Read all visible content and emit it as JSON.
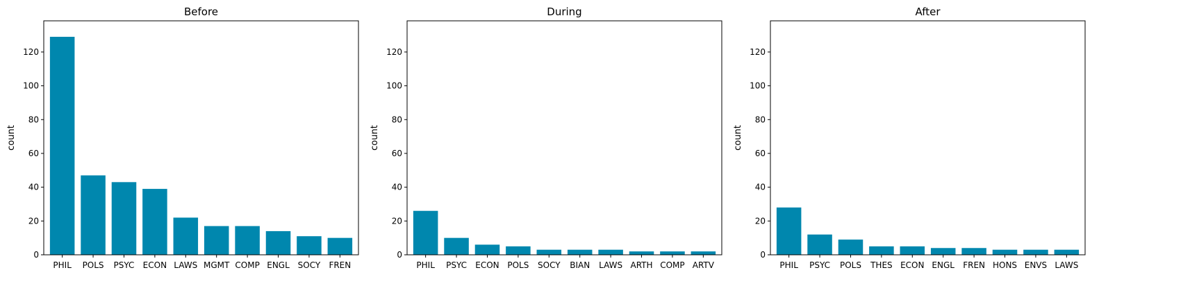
{
  "chart_data": [
    {
      "type": "bar",
      "title": "Before",
      "xlabel": "",
      "ylabel": "count",
      "ylim": [
        0,
        138.45
      ],
      "yticks": [
        0,
        20,
        40,
        60,
        80,
        100,
        120
      ],
      "categories": [
        "PHIL",
        "POLS",
        "PSYC",
        "ECON",
        "LAWS",
        "MGMT",
        "COMP",
        "ENGL",
        "SOCY",
        "FREN"
      ],
      "values": [
        129,
        47,
        43,
        39,
        22,
        17,
        17,
        14,
        11,
        10
      ],
      "color": "#0087ae",
      "grid": false,
      "legend": "none"
    },
    {
      "type": "bar",
      "title": "During",
      "xlabel": "",
      "ylabel": "count",
      "ylim": [
        0,
        138.45
      ],
      "yticks": [
        0,
        20,
        40,
        60,
        80,
        100,
        120
      ],
      "categories": [
        "PHIL",
        "PSYC",
        "ECON",
        "POLS",
        "SOCY",
        "BIAN",
        "LAWS",
        "ARTH",
        "COMP",
        "ARTV"
      ],
      "values": [
        26,
        10,
        6,
        5,
        3,
        3,
        3,
        2,
        2,
        2
      ],
      "color": "#0087ae",
      "grid": false,
      "legend": "none"
    },
    {
      "type": "bar",
      "title": "After",
      "xlabel": "",
      "ylabel": "count",
      "ylim": [
        0,
        138.45
      ],
      "yticks": [
        0,
        20,
        40,
        60,
        80,
        100,
        120
      ],
      "categories": [
        "PHIL",
        "PSYC",
        "POLS",
        "THES",
        "ECON",
        "ENGL",
        "FREN",
        "HONS",
        "ENVS",
        "LAWS"
      ],
      "values": [
        28,
        12,
        9,
        5,
        5,
        4,
        4,
        3,
        3,
        3
      ],
      "color": "#0087ae",
      "grid": false,
      "legend": "none"
    }
  ]
}
